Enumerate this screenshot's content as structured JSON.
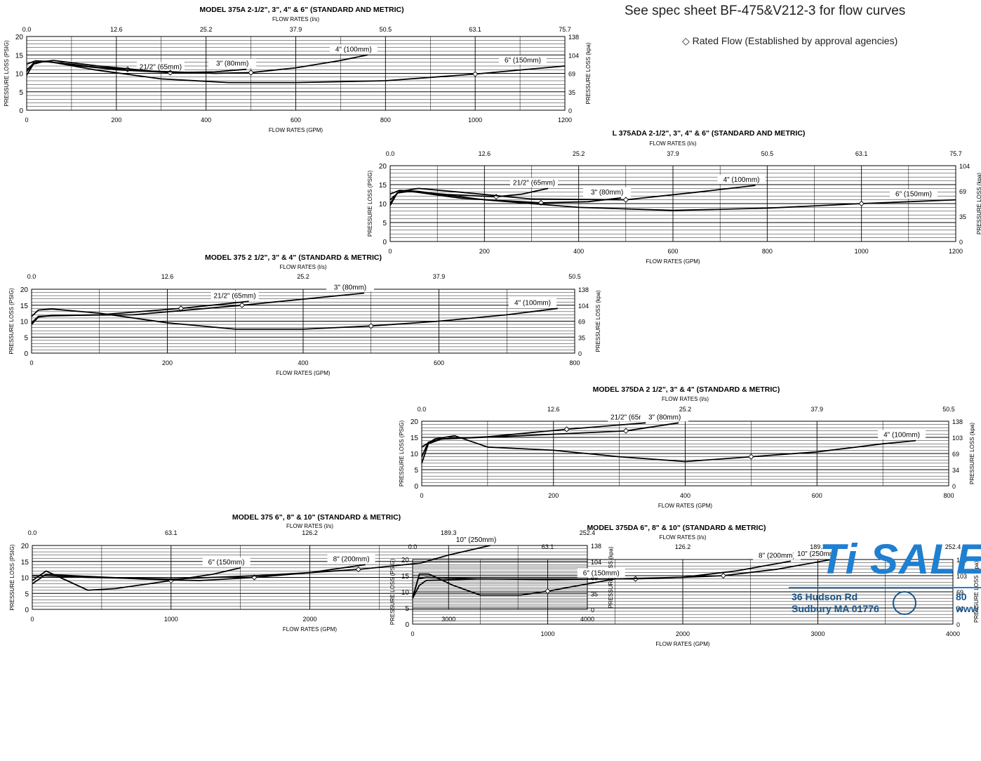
{
  "header": {
    "spec_note": "See spec sheet BF-475&V212-3 for flow curves",
    "rated_flow_note": "◇ Rated Flow (Established by approval agencies)"
  },
  "logo": {
    "brand_text": "Ti SALE",
    "address": "36 Hudson Rd\nSudbury MA 01776",
    "phone_fragment": "80",
    "web_fragment": "www",
    "meter_icon": "water-meter-icon",
    "brand_color": "#1f7fd0"
  },
  "chart_data": [
    {
      "type": "line",
      "title": "MODEL 375A 2-1/2\", 3\", 4\" & 6\" (STANDARD AND METRIC)",
      "top_axis_label": "FLOW RATES (l/s)",
      "xlabel": "FLOW RATES (GPM)",
      "ylabel": "PRESSURE LOSS (PSIG)",
      "y2label": "PRESSURE LOSS (kpa)",
      "xlim": [
        0,
        1200
      ],
      "ylim": [
        0,
        20
      ],
      "x_ticks": [
        "0",
        "200",
        "400",
        "600",
        "800",
        "1000",
        "1200"
      ],
      "top_ticks": [
        "0.0",
        "12.6",
        "25.2",
        "37.9",
        "50.5",
        "63.1",
        "75.7"
      ],
      "y_ticks": [
        "0",
        "5",
        "10",
        "15",
        "20"
      ],
      "y2_ticks": [
        "0",
        "35",
        "69",
        "104",
        "138"
      ],
      "grid": true,
      "series": [
        {
          "name": "21/2\" (65mm)",
          "x": [
            0,
            15,
            40,
            100,
            160,
            225,
            280,
            330
          ],
          "y": [
            10.5,
            12.8,
            13.2,
            12.5,
            11.6,
            11.1,
            10.6,
            10.2
          ],
          "rated": [
            225,
            11.1
          ]
        },
        {
          "name": "3\" (80mm)",
          "x": [
            0,
            15,
            40,
            120,
            200,
            320,
            420,
            490
          ],
          "y": [
            9.5,
            12.5,
            13.3,
            12,
            11,
            10.2,
            10.4,
            11.1
          ],
          "rated": [
            320,
            10.2
          ]
        },
        {
          "name": "4\" (100mm)",
          "x": [
            0,
            20,
            60,
            160,
            280,
            420,
            500,
            600,
            700,
            760
          ],
          "y": [
            11,
            13,
            13.5,
            12,
            10.6,
            10,
            10.2,
            11.5,
            13.5,
            15
          ],
          "rated": [
            500,
            10.2
          ]
        },
        {
          "name": "6\" (150mm)",
          "x": [
            0,
            20,
            50,
            150,
            300,
            450,
            600,
            800,
            1000,
            1200
          ],
          "y": [
            12.5,
            13.4,
            13.2,
            11,
            8.5,
            7.5,
            7.5,
            8,
            9.8,
            12
          ],
          "rated": [
            1000,
            9.8
          ]
        }
      ]
    },
    {
      "type": "line",
      "title": "L 375ADA 2-1/2\", 3\", 4\" &  6\" (STANDARD AND METRIC)",
      "top_axis_label": "FLOW RATES (l/s)",
      "xlabel": "FLOW RATES (GPM)",
      "ylabel": "PRESSURE LOSS (PSIG)",
      "y2label": "PRESSURE LOSS (kpa)",
      "xlim": [
        0,
        1200
      ],
      "ylim": [
        0,
        20
      ],
      "x_ticks": [
        "0",
        "200",
        "400",
        "600",
        "800",
        "1000",
        "1200"
      ],
      "top_ticks": [
        "0.0",
        "12.6",
        "25.2",
        "37.9",
        "50.5",
        "63.1",
        "75.7"
      ],
      "y_ticks": [
        "0",
        "5",
        "10",
        "15",
        "20"
      ],
      "y2_ticks": [
        "0",
        "35",
        "69",
        "104"
      ],
      "grid": true,
      "series": [
        {
          "name": "21/2\" (65mm)",
          "x": [
            0,
            15,
            40,
            120,
            225,
            280,
            335
          ],
          "y": [
            10,
            12.8,
            13.2,
            12.4,
            11.8,
            12.5,
            14
          ],
          "rated": [
            225,
            11.8
          ]
        },
        {
          "name": "3\" (80mm)",
          "x": [
            0,
            15,
            40,
            150,
            320,
            420,
            490
          ],
          "y": [
            9.5,
            12.8,
            13.3,
            11.4,
            10.2,
            10.5,
            11.5
          ],
          "rated": [
            320,
            10.2
          ]
        },
        {
          "name": "4\" (100mm)",
          "x": [
            0,
            20,
            60,
            150,
            300,
            500,
            650,
            775
          ],
          "y": [
            11,
            13.2,
            14,
            13,
            11.2,
            11,
            13,
            14.8
          ],
          "rated": [
            500,
            11
          ]
        },
        {
          "name": "6\" (150mm)",
          "x": [
            0,
            20,
            60,
            200,
            400,
            600,
            800,
            1000,
            1200
          ],
          "y": [
            12.5,
            13.5,
            13.2,
            11,
            9,
            8.2,
            8.8,
            10,
            11
          ],
          "rated": [
            1000,
            10
          ]
        }
      ]
    },
    {
      "type": "line",
      "title": "MODEL 375 2 1/2\", 3\" & 4\" (STANDARD & METRIC)",
      "top_axis_label": "FLOW RATES (l/s)",
      "xlabel": "FLOW RATES (GPM)",
      "ylabel": "PRESSURE LOSS (PSIG)",
      "y2label": "PRESSURE LOSS (kpa)",
      "xlim": [
        0,
        800
      ],
      "ylim": [
        0,
        20
      ],
      "x_ticks": [
        "0",
        "200",
        "400",
        "600",
        "800"
      ],
      "top_ticks": [
        "0.0",
        "12.6",
        "25.2",
        "37.9",
        "50.5"
      ],
      "y_ticks": [
        "0",
        "5",
        "10",
        "15",
        "20"
      ],
      "y2_ticks": [
        "0",
        "35",
        "69",
        "104",
        "138"
      ],
      "grid": true,
      "series": [
        {
          "name": "21/2\" (65mm)",
          "x": [
            0,
            10,
            30,
            100,
            220,
            320
          ],
          "y": [
            9.5,
            11.5,
            11.7,
            12,
            14,
            16.2
          ],
          "rated": [
            220,
            14
          ]
        },
        {
          "name": "3\" (80mm)",
          "x": [
            0,
            10,
            30,
            150,
            310,
            490
          ],
          "y": [
            9,
            11.3,
            11.8,
            12,
            15,
            18.8
          ],
          "rated": [
            310,
            15
          ]
        },
        {
          "name": "4\" (100mm)",
          "x": [
            0,
            10,
            30,
            100,
            200,
            300,
            400,
            500,
            600,
            700,
            775
          ],
          "y": [
            11.5,
            13.5,
            13.8,
            12.5,
            9.5,
            7.5,
            7.5,
            8.5,
            10,
            12,
            14
          ],
          "rated": [
            500,
            8.5
          ]
        }
      ]
    },
    {
      "type": "line",
      "title": "MODEL 375DA 2 1/2\", 3\" & 4\" (STANDARD & METRIC)",
      "top_axis_label": "FLOW RATES (l/s)",
      "xlabel": "FLOW RATES (GPM)",
      "ylabel": "PRESSURE LOSS (PSIG)",
      "y2label": "PRESSURE LOSS (kpa)",
      "xlim": [
        0,
        800
      ],
      "ylim": [
        0,
        20
      ],
      "x_ticks": [
        "0",
        "200",
        "400",
        "600",
        "800"
      ],
      "top_ticks": [
        "0.0",
        "12.6",
        "25.2",
        "37.9",
        "50.5"
      ],
      "y_ticks": [
        "0",
        "5",
        "10",
        "15",
        "20"
      ],
      "y2_ticks": [
        "0",
        "34",
        "69",
        "103",
        "138"
      ],
      "grid": true,
      "series": [
        {
          "name": "21/2\" (65mm)",
          "x": [
            0,
            10,
            30,
            100,
            220,
            340
          ],
          "y": [
            9,
            13.5,
            14.5,
            15.2,
            17.5,
            19.5
          ],
          "rated": [
            220,
            17.5
          ]
        },
        {
          "name": "3\" (80mm)",
          "x": [
            0,
            10,
            30,
            150,
            310,
            390
          ],
          "y": [
            7,
            13,
            14.5,
            15.5,
            17,
            19.5
          ],
          "rated": [
            310,
            17
          ]
        },
        {
          "name": "4\" (100mm)",
          "x": [
            0,
            20,
            50,
            100,
            200,
            300,
            400,
            500,
            600,
            700,
            750
          ],
          "y": [
            12,
            14.5,
            15.5,
            12,
            11,
            9,
            7.5,
            9,
            10.5,
            13,
            14
          ],
          "rated": [
            500,
            9
          ]
        }
      ]
    },
    {
      "type": "line",
      "title": "MODEL 375 6\", 8\" & 10\" (STANDARD & METRIC)",
      "top_axis_label": "FLOW RATES (l/s)",
      "xlabel": "FLOW RATES (GPM)",
      "ylabel": "PRESSURE LOSS (PSIG)",
      "y2label": "PRESSURE LOSS (kpa)",
      "xlim": [
        0,
        4000
      ],
      "ylim": [
        0,
        20
      ],
      "x_ticks": [
        "0",
        "1000",
        "2000",
        "3000",
        "4000"
      ],
      "top_ticks": [
        "0.0",
        "63.1",
        "126.2",
        "189.3",
        "252.4"
      ],
      "y_ticks": [
        "0",
        "5",
        "10",
        "15",
        "20"
      ],
      "y2_ticks": [
        "0",
        "35",
        "69",
        "104",
        "138"
      ],
      "grid": true,
      "series": [
        {
          "name": "6\" (150mm)",
          "x": [
            0,
            100,
            200,
            400,
            600,
            1000,
            1300,
            1500
          ],
          "y": [
            9,
            12,
            10,
            6,
            6.5,
            9,
            11,
            13
          ],
          "rated": [
            1000,
            9
          ]
        },
        {
          "name": "8\" (200mm)",
          "x": [
            0,
            100,
            300,
            800,
            1200,
            1600,
            2000,
            2400
          ],
          "y": [
            8,
            11,
            10.5,
            9.5,
            9,
            10,
            11.5,
            14
          ],
          "rated": [
            1600,
            10
          ]
        },
        {
          "name": "10\" (250mm)",
          "x": [
            0,
            100,
            400,
            1000,
            1600,
            2000,
            2350,
            2800,
            3000,
            3300
          ],
          "y": [
            10.5,
            10.5,
            10,
            9.5,
            10.5,
            11.5,
            12.5,
            14.5,
            17,
            20
          ],
          "rated": [
            2350,
            12.5
          ]
        }
      ]
    },
    {
      "type": "line",
      "title": "MODEL 375DA 6\", 8\" & 10\" (STANDARD & METRIC)",
      "top_axis_label": "FLOW RATES (l/s)",
      "xlabel": "FLOW RATES (GPM)",
      "ylabel": "PRESSURE LOSS (PSIG)",
      "y2label": "PRESSURE LOSS (kpa)",
      "xlim": [
        0,
        4000
      ],
      "ylim": [
        0,
        20
      ],
      "x_ticks": [
        "0",
        "1000",
        "2000",
        "3000",
        "4000"
      ],
      "top_ticks": [
        "0.0",
        "63.1",
        "126.2",
        "189.3",
        "252.4"
      ],
      "y_ticks": [
        "0",
        "5",
        "10",
        "15",
        "20"
      ],
      "y2_ticks": [
        "0",
        "34",
        "69",
        "103",
        "138"
      ],
      "grid": true,
      "series": [
        {
          "name": "6\" (150mm)",
          "x": [
            0,
            50,
            120,
            300,
            500,
            800,
            1000,
            1300,
            1500
          ],
          "y": [
            8,
            15.5,
            15.5,
            12,
            9,
            9,
            10.2,
            12.5,
            14
          ],
          "rated": [
            1000,
            10.2
          ]
        },
        {
          "name": "8\" (200mm)",
          "x": [
            0,
            40,
            100,
            500,
            1000,
            1650,
            2000,
            2400,
            2800
          ],
          "y": [
            8,
            14,
            14.5,
            14,
            14,
            14,
            14.5,
            16.5,
            19.5
          ],
          "rated": [
            1650,
            14
          ]
        },
        {
          "name": "10\" (250mm)",
          "x": [
            0,
            50,
            100,
            500,
            1000,
            1500,
            2000,
            2300,
            2700,
            3100
          ],
          "y": [
            8,
            12,
            13.5,
            14,
            13.8,
            14,
            14.5,
            15,
            17,
            20
          ],
          "rated": [
            2300,
            15
          ]
        }
      ]
    }
  ]
}
